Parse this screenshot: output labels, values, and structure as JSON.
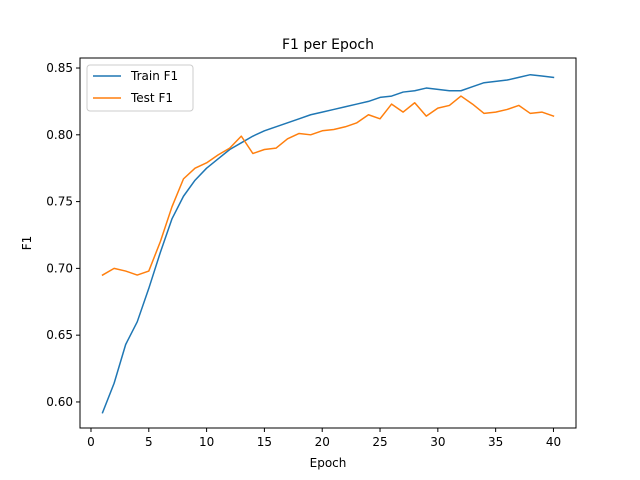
{
  "chart_data": {
    "type": "line",
    "title": "F1 per Epoch",
    "xlabel": "Epoch",
    "ylabel": "F1",
    "xlim": [
      -0.95,
      41.95
    ],
    "ylim": [
      0.5805,
      0.8575
    ],
    "xticks": [
      0,
      5,
      10,
      15,
      20,
      25,
      30,
      35,
      40
    ],
    "xtick_labels": [
      "0",
      "5",
      "10",
      "15",
      "20",
      "25",
      "30",
      "35",
      "40"
    ],
    "yticks": [
      0.6,
      0.65,
      0.7,
      0.75,
      0.8,
      0.85
    ],
    "ytick_labels": [
      "0.60",
      "0.65",
      "0.70",
      "0.75",
      "0.80",
      "0.85"
    ],
    "grid": false,
    "legend_position": "top-left",
    "x": [
      1,
      2,
      3,
      4,
      5,
      6,
      7,
      8,
      9,
      10,
      11,
      12,
      13,
      14,
      15,
      16,
      17,
      18,
      19,
      20,
      21,
      22,
      23,
      24,
      25,
      26,
      27,
      28,
      29,
      30,
      31,
      32,
      33,
      34,
      35,
      36,
      37,
      38,
      39,
      40
    ],
    "series": [
      {
        "name": "Train F1",
        "color": "#1f77b4",
        "values": [
          0.592,
          0.614,
          0.643,
          0.66,
          0.685,
          0.712,
          0.737,
          0.754,
          0.766,
          0.775,
          0.782,
          0.789,
          0.794,
          0.799,
          0.803,
          0.806,
          0.809,
          0.812,
          0.815,
          0.817,
          0.819,
          0.821,
          0.823,
          0.825,
          0.828,
          0.829,
          0.832,
          0.833,
          0.835,
          0.834,
          0.833,
          0.833,
          0.836,
          0.839,
          0.84,
          0.841,
          0.843,
          0.845,
          0.844,
          0.843
        ]
      },
      {
        "name": "Test F1",
        "color": "#ff7f0e",
        "values": [
          0.695,
          0.7,
          0.698,
          0.695,
          0.698,
          0.72,
          0.746,
          0.767,
          0.775,
          0.779,
          0.785,
          0.79,
          0.799,
          0.786,
          0.789,
          0.79,
          0.797,
          0.801,
          0.8,
          0.803,
          0.804,
          0.806,
          0.809,
          0.815,
          0.812,
          0.823,
          0.817,
          0.824,
          0.814,
          0.82,
          0.822,
          0.829,
          0.823,
          0.816,
          0.817,
          0.819,
          0.822,
          0.816,
          0.817,
          0.814
        ]
      }
    ]
  }
}
